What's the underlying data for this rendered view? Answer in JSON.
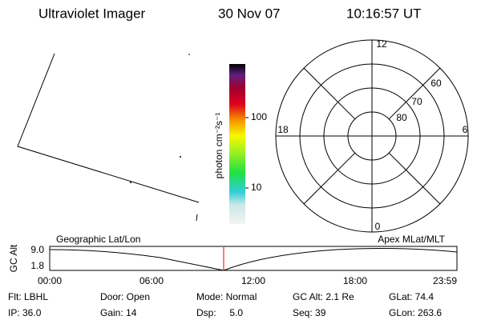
{
  "header": {
    "instrument": "Ultraviolet Imager",
    "date": "30 Nov 07",
    "time": "10:16:57 UT"
  },
  "colorbar": {
    "label": "photon cm⁻²s⁻¹",
    "ticks": [
      "100",
      "10"
    ]
  },
  "polar": {
    "mlt_labels": [
      "12",
      "6",
      "0",
      "18"
    ],
    "lat_labels": [
      "60",
      "70",
      "80"
    ]
  },
  "timeline": {
    "y_label": "GC Alt",
    "y_ticks": [
      "9.0",
      "1.8"
    ],
    "left_label": "Geographic Lat/Lon",
    "right_label": "Apex MLat/MLT",
    "x_ticks": [
      "00:00",
      "06:00",
      "12:00",
      "18:00",
      "23:59"
    ]
  },
  "footer": {
    "rows": [
      [
        "Flt: LBHL",
        "Door: Open",
        "Mode: Normal",
        "GC Alt: 2.1 Re",
        "GLat: 74.4"
      ],
      [
        "IP: 36.0",
        "Gain: 14",
        "Dsp:     5.0",
        "Seq: 39",
        "GLon: 263.6"
      ]
    ]
  }
}
